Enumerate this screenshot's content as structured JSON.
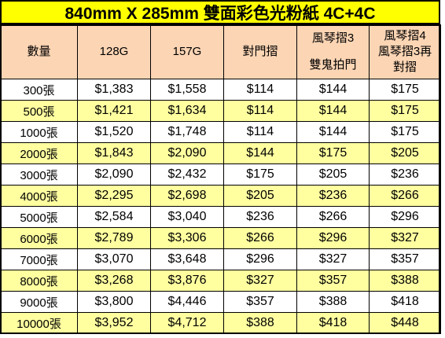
{
  "title": "840mm X 285mm 雙面彩色光粉紙 4C+4C",
  "headers": {
    "qty": "數量",
    "g128": "128G",
    "g157": "157G",
    "fold_door": "對門摺",
    "accordion3_line1": "風琴摺3",
    "accordion3_line2": "雙鬼拍門",
    "accordion4_line1": "風琴摺4",
    "accordion4_line2": "風琴摺3再",
    "accordion4_line3": "對摺"
  },
  "rows": [
    {
      "qty": "300張",
      "g128": "$1,383",
      "g157": "$1,558",
      "fold_door": "$114",
      "accordion3": "$144",
      "accordion4": "$175"
    },
    {
      "qty": "500張",
      "g128": "$1,421",
      "g157": "$1,634",
      "fold_door": "$114",
      "accordion3": "$144",
      "accordion4": "$175"
    },
    {
      "qty": "1000張",
      "g128": "$1,520",
      "g157": "$1,748",
      "fold_door": "$114",
      "accordion3": "$144",
      "accordion4": "$175"
    },
    {
      "qty": "2000張",
      "g128": "$1,843",
      "g157": "$2,090",
      "fold_door": "$144",
      "accordion3": "$175",
      "accordion4": "$205"
    },
    {
      "qty": "3000張",
      "g128": "$2,090",
      "g157": "$2,432",
      "fold_door": "$175",
      "accordion3": "$205",
      "accordion4": "$236"
    },
    {
      "qty": "4000張",
      "g128": "$2,295",
      "g157": "$2,698",
      "fold_door": "$205",
      "accordion3": "$236",
      "accordion4": "$266"
    },
    {
      "qty": "5000張",
      "g128": "$2,584",
      "g157": "$3,040",
      "fold_door": "$236",
      "accordion3": "$266",
      "accordion4": "$296"
    },
    {
      "qty": "6000張",
      "g128": "$2,789",
      "g157": "$3,306",
      "fold_door": "$266",
      "accordion3": "$296",
      "accordion4": "$327"
    },
    {
      "qty": "7000張",
      "g128": "$3,070",
      "g157": "$3,648",
      "fold_door": "$296",
      "accordion3": "$327",
      "accordion4": "$357"
    },
    {
      "qty": "8000張",
      "g128": "$3,268",
      "g157": "$3,876",
      "fold_door": "$327",
      "accordion3": "$357",
      "accordion4": "$388"
    },
    {
      "qty": "9000張",
      "g128": "$3,800",
      "g157": "$4,446",
      "fold_door": "$357",
      "accordion3": "$388",
      "accordion4": "$418"
    },
    {
      "qty": "10000張",
      "g128": "$3,952",
      "g157": "$4,712",
      "fold_door": "$388",
      "accordion3": "$418",
      "accordion4": "$448"
    }
  ],
  "colors": {
    "title_bg": "#ffff00",
    "header_bg": "#fcd5b4",
    "alt_row_bg": "#ffffa0",
    "plain_row_bg": "#ffffff"
  }
}
